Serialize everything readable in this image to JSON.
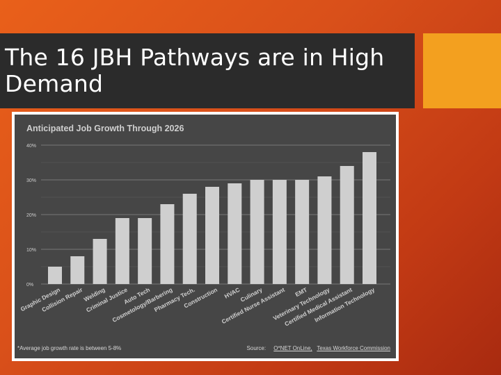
{
  "slide": {
    "title": "The 16 JBH Pathways are in High Demand"
  },
  "footnote": "*Average job growth rate is between 5-8%",
  "source": {
    "label": "Source:",
    "links": [
      "O*NET OnLine,",
      "Texas Workforce Commission"
    ]
  },
  "colors": {
    "background": "#d9501a",
    "title_bar": "#2b2b2b",
    "accent": "#f3a01f",
    "chart_panel": "#464646",
    "bar": "#cfcfcf"
  },
  "chart_data": {
    "type": "bar",
    "title": "Anticipated Job Growth Through 2026",
    "xlabel": "",
    "ylabel": "",
    "ylim": [
      0,
      40
    ],
    "yticks": [
      "0%",
      "10%",
      "20%",
      "30%",
      "40%"
    ],
    "grid": true,
    "categories": [
      "Graphic Design",
      "Collision Repair",
      "Welding",
      "Criminal Justice",
      "Auto Tech",
      "Cosmetology/Barbering",
      "Pharmacy Tech.",
      "Construction",
      "HVAC",
      "Culinary",
      "Certified Nurse Assistant",
      "EMT",
      "Veterinary Technology",
      "Certified Medical Assistant",
      "Information Technology"
    ],
    "values": [
      5,
      8,
      13,
      19,
      19,
      23,
      26,
      28,
      29,
      30,
      30,
      30,
      31,
      34,
      38
    ]
  }
}
